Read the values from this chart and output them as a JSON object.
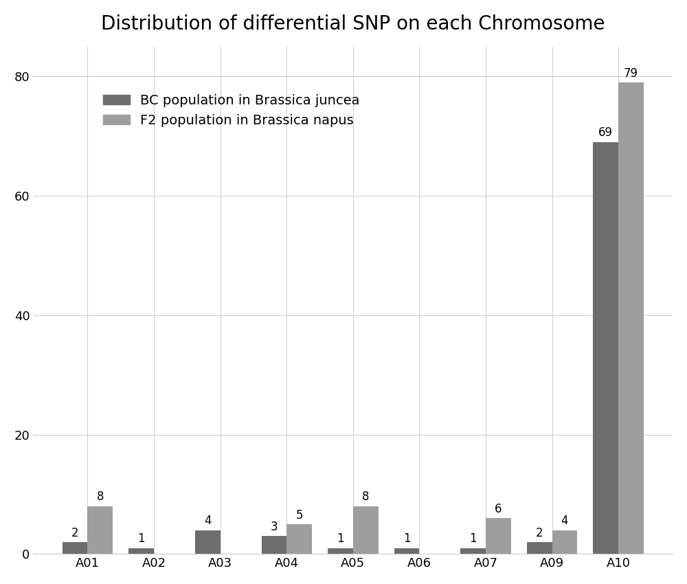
{
  "title": "Distribution of differential SNP on each Chromosome",
  "categories": [
    "A01",
    "A02",
    "A03",
    "A04",
    "A05",
    "A06",
    "A07",
    "A09",
    "A10"
  ],
  "bc_values": [
    2,
    1,
    4,
    3,
    1,
    1,
    1,
    2,
    69
  ],
  "f2_values": [
    8,
    0,
    0,
    5,
    8,
    0,
    6,
    4,
    79
  ],
  "bc_color": "#6d6d6d",
  "f2_color": "#9e9e9e",
  "bar_width": 0.38,
  "ylim": [
    0,
    85
  ],
  "yticks": [
    0,
    20,
    40,
    60,
    80
  ],
  "legend_bc": "BC population in Brassica juncea",
  "legend_f2": "F2 population in Brassica napus",
  "title_fontsize": 20,
  "label_fontsize": 12,
  "tick_fontsize": 13,
  "legend_fontsize": 14,
  "background_color": "#ffffff",
  "grid_color": "#d0d0d0"
}
